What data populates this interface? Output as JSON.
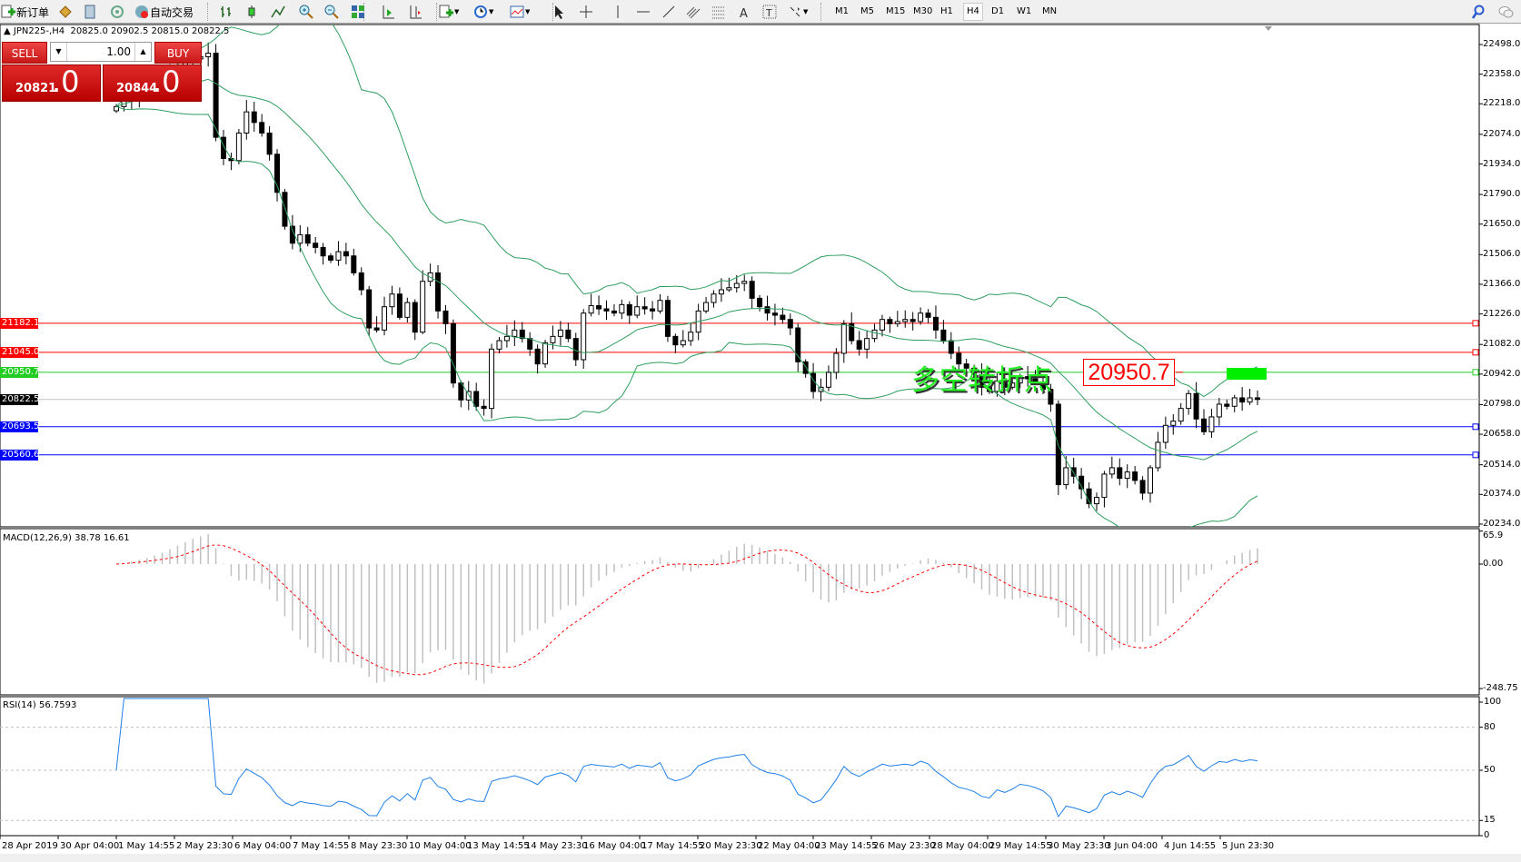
{
  "toolbar": {
    "new_order": "新订单",
    "auto_trading": "自动交易",
    "timeframes": [
      "M1",
      "M5",
      "M15",
      "M30",
      "H1",
      "H4",
      "D1",
      "W1",
      "MN"
    ],
    "active_timeframe": "H4",
    "icons": [
      "new-order-icon",
      "market-watch-icon",
      "navigator-icon",
      "signals-icon",
      "auto-trading-icon",
      "bar-chart-icon",
      "candlestick-icon",
      "line-chart-icon",
      "zoom-in-icon",
      "zoom-out-icon",
      "tile-windows-icon",
      "auto-scroll-icon",
      "chart-shift-icon",
      "indicators-icon",
      "periods-icon",
      "templates-icon",
      "cursor-icon",
      "crosshair-icon",
      "vertical-line-icon",
      "horizontal-line-icon",
      "trendline-icon",
      "equidistant-channel-icon",
      "fibonacci-icon",
      "text-icon",
      "text-label-icon",
      "arrows-icon",
      "search-icon",
      "chat-icon"
    ]
  },
  "chart_header": {
    "symbol": "JPN225-,H4",
    "ohlc": "20825.0 20902.5 20815.0 20822.5"
  },
  "trade_panel": {
    "sell": "SELL",
    "buy": "BUY",
    "lot": "1.00",
    "bid_main": "20821",
    "bid_frac": ".0",
    "ask_main": "20844",
    "ask_frac": ".0",
    "color": "#d01f1f"
  },
  "annotation": {
    "text": "多空转折点",
    "price_label": "20950.7",
    "text_color": "#22ee22"
  },
  "chart_data": {
    "type": "candlestick",
    "symbol": "JPN225-",
    "timeframe": "H4",
    "close": [
      22205,
      22230,
      22250,
      22260,
      22280,
      22300,
      22330,
      22360,
      22390,
      22410,
      22430,
      22440,
      22457,
      22060,
      21960,
      21950,
      22080,
      22180,
      22130,
      22080,
      21980,
      21800,
      21640,
      21560,
      21600,
      21560,
      21540,
      21500,
      21480,
      21520,
      21500,
      21420,
      21340,
      21160,
      21150,
      21260,
      21320,
      21210,
      21280,
      21140,
      21380,
      21420,
      21240,
      21180,
      20900,
      20820,
      20860,
      20790,
      20780,
      21060,
      21100,
      21120,
      21150,
      21110,
      21060,
      20990,
      21090,
      21120,
      21150,
      21110,
      21010,
      21230,
      21265,
      21250,
      21240,
      21230,
      21270,
      21220,
      21260,
      21250,
      21240,
      21290,
      21120,
      21080,
      21100,
      21140,
      21240,
      21280,
      21320,
      21340,
      21350,
      21370,
      21380,
      21300,
      21260,
      21230,
      21220,
      21200,
      21160,
      21000,
      20945,
      20860,
      20880,
      20950,
      21040,
      21180,
      21100,
      21060,
      21110,
      21150,
      21200,
      21180,
      21190,
      21200,
      21190,
      21230,
      21210,
      21150,
      21100,
      21040,
      20990,
      20970,
      20940,
      20880,
      20860,
      20910,
      20880,
      20900,
      20930,
      20920,
      20900,
      20870,
      20800,
      20420,
      20500,
      20460,
      20400,
      20330,
      20360,
      20470,
      20500,
      20450,
      20480,
      20440,
      20380,
      20500,
      20620,
      20700,
      20720,
      20780,
      20850,
      20730,
      20670,
      20740,
      20800,
      20790,
      20830,
      20810,
      20830,
      20822.5
    ],
    "price_axis": {
      "ticks": [
        "22498.0",
        "22358.0",
        "22218.0",
        "22074.0",
        "21934.0",
        "21790.0",
        "21650.0",
        "21506.0",
        "21366.0",
        "21226.0",
        "21082.0",
        "20942.0",
        "20798.0",
        "20658.0",
        "20514.0",
        "20374.0",
        "20234.0"
      ],
      "range": [
        20234,
        22498
      ]
    },
    "hlines": [
      {
        "price": "21182.1",
        "color": "#ff0000"
      },
      {
        "price": "21045.0",
        "color": "#ff0000"
      },
      {
        "price": "20950.7",
        "color": "#22cc22"
      },
      {
        "price": "20822.5",
        "color": "#000000",
        "line": "#c0c0c0"
      },
      {
        "price": "20693.5",
        "color": "#0000ff"
      },
      {
        "price": "20560.6",
        "color": "#0000ff"
      }
    ],
    "bollinger_color": "#2e9e5e",
    "macd": {
      "label": "MACD(12,26,9) 38.78 16.61",
      "ticks": [
        "65.9",
        "0.00",
        "-248.75"
      ],
      "range": [
        -248.75,
        65.9
      ],
      "hist_color": "#c0c0c0",
      "signal_color": "#ff0000"
    },
    "rsi": {
      "label": "RSI(14) 56.7593",
      "ticks": [
        "100",
        "80",
        "50",
        "15",
        "0"
      ],
      "levels": [
        80,
        50,
        15
      ],
      "color": "#1e7fe8"
    },
    "time_labels": [
      "28 Apr 2019",
      "30 Apr 04:00",
      "1 May 14:55",
      "2 May 23:30",
      "6 May 04:00",
      "7 May 14:55",
      "8 May 23:30",
      "10 May 04:00",
      "13 May 14:55",
      "14 May 23:30",
      "16 May 04:00",
      "17 May 14:55",
      "20 May 23:30",
      "22 May 04:00",
      "23 May 14:55",
      "26 May 23:30",
      "28 May 04:00",
      "29 May 14:55",
      "30 May 23:30",
      "3 Jun 04:00",
      "4 Jun 14:55",
      "5 Jun 23:30"
    ]
  }
}
